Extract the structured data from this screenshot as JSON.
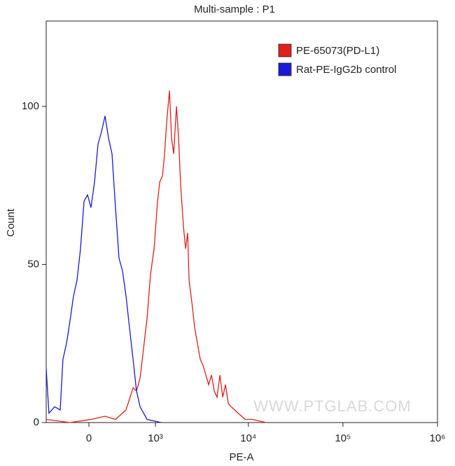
{
  "chart_data": {
    "type": "line",
    "title": "Multi-sample : P1",
    "x_label": "PE-A",
    "y_label": "Count",
    "annotation": "WWW.PTGLAB.COM",
    "xscale": "biexponential",
    "xlim": [
      -510,
      1000000
    ],
    "xticks": [
      0,
      {
        "value": 1000,
        "label": "10³"
      },
      {
        "value": 10000,
        "label": "10⁴"
      },
      {
        "value": 100000,
        "label": "10⁵"
      },
      {
        "value": 1000000,
        "label": "10⁶"
      }
    ],
    "ylim": [
      0,
      127
    ],
    "yticks": [
      0,
      50,
      100
    ],
    "legend": "top-right",
    "series": [
      {
        "name": "PE-65073(PD-L1)",
        "color": "#e0201c",
        "x": [
          -510,
          -197,
          21,
          166,
          286,
          425,
          533,
          592,
          656,
          799,
          878,
          964,
          1057,
          1117,
          1201,
          1267,
          1337,
          1436,
          1514,
          1596,
          1713,
          1805,
          1902,
          2039,
          2149,
          2263,
          2343,
          2511,
          2691,
          2883,
          3088,
          3308,
          3544,
          3795,
          4065,
          4353,
          4662,
          4993,
          5346,
          5723,
          6130,
          6563,
          7148,
          7787,
          9237,
          10955,
          15413
        ],
        "values": [
          1,
          0,
          1,
          2,
          1,
          4,
          11,
          10,
          14,
          33,
          47,
          55,
          70,
          76,
          78,
          85,
          95,
          105,
          90,
          85,
          100,
          90,
          75,
          62,
          55,
          60,
          45,
          38,
          30,
          25,
          20,
          18,
          15,
          12,
          15,
          10,
          8,
          15,
          8,
          12,
          6,
          5,
          4,
          3,
          1,
          1,
          0
        ]
      },
      {
        "name": "Rat-PE-IgG2b control",
        "color": "#1a1ad6",
        "x": [
          -510,
          -467,
          -386,
          -312,
          -278,
          -236,
          -197,
          -158,
          -121,
          -85,
          -49,
          -14,
          21,
          56,
          92,
          128,
          166,
          204,
          244,
          286,
          330,
          376,
          425,
          477,
          533,
          592,
          656,
          799,
          1158
        ],
        "values": [
          17,
          3,
          5,
          4,
          20,
          25,
          32,
          40,
          45,
          55,
          70,
          72,
          68,
          76,
          88,
          92,
          97,
          90,
          85,
          68,
          52,
          48,
          40,
          30,
          20,
          10,
          5,
          1,
          0
        ]
      }
    ]
  }
}
